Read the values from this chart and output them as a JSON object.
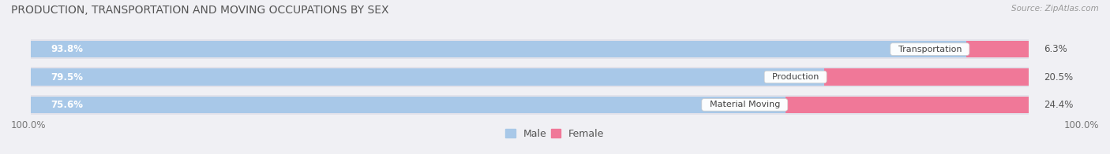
{
  "title": "PRODUCTION, TRANSPORTATION AND MOVING OCCUPATIONS BY SEX",
  "source": "Source: ZipAtlas.com",
  "categories": [
    "Transportation",
    "Production",
    "Material Moving"
  ],
  "male_values": [
    93.8,
    79.5,
    75.6
  ],
  "female_values": [
    6.3,
    20.5,
    24.4
  ],
  "male_color": "#a8c8e8",
  "female_color": "#f07898",
  "bg_color": "#f0f0f4",
  "bar_bg_color": "#e2e2ea",
  "axis_label_left": "100.0%",
  "axis_label_right": "100.0%",
  "title_fontsize": 10,
  "bar_fontsize": 8.5,
  "legend_fontsize": 9
}
